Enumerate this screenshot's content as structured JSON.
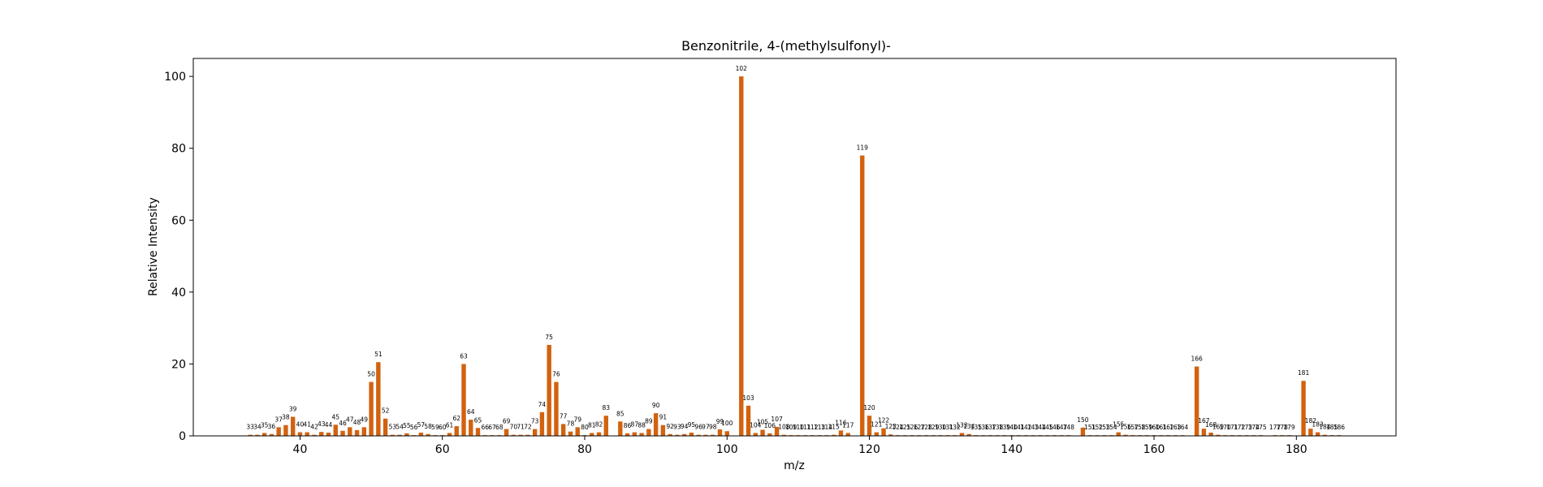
{
  "chart_data": {
    "type": "bar",
    "title": "Benzonitrile, 4-(methylsulfonyl)-",
    "xlabel": "m/z",
    "ylabel": "Relative Intensity",
    "xlim": [
      25,
      194
    ],
    "ylim": [
      0,
      105
    ],
    "xticks": [
      40,
      60,
      80,
      100,
      120,
      140,
      160,
      180
    ],
    "yticks": [
      0,
      20,
      40,
      60,
      80,
      100
    ],
    "bar_color": "#d2620f",
    "grid": false,
    "legend": "none",
    "x": [
      33,
      34,
      35,
      36,
      37,
      38,
      39,
      40,
      41,
      42,
      43,
      44,
      45,
      46,
      47,
      48,
      49,
      50,
      51,
      52,
      53,
      54,
      55,
      56,
      57,
      58,
      59,
      60,
      61,
      62,
      63,
      64,
      65,
      66,
      67,
      68,
      69,
      70,
      71,
      72,
      73,
      74,
      75,
      76,
      77,
      78,
      79,
      80,
      81,
      82,
      83,
      85,
      86,
      87,
      88,
      89,
      90,
      91,
      92,
      93,
      94,
      95,
      96,
      97,
      98,
      99,
      100,
      102,
      103,
      104,
      105,
      106,
      107,
      108,
      109,
      110,
      111,
      112,
      113,
      114,
      115,
      116,
      117,
      119,
      120,
      121,
      122,
      123,
      124,
      125,
      126,
      127,
      128,
      129,
      130,
      131,
      132,
      133,
      134,
      135,
      136,
      137,
      138,
      139,
      140,
      141,
      142,
      143,
      144,
      145,
      146,
      147,
      148,
      150,
      151,
      152,
      153,
      154,
      155,
      156,
      157,
      158,
      159,
      160,
      161,
      162,
      163,
      164,
      166,
      167,
      168,
      169,
      170,
      171,
      172,
      173,
      174,
      175,
      177,
      178,
      179,
      181,
      182,
      183,
      184,
      185,
      186
    ],
    "values": [
      0.3,
      0.3,
      0.8,
      0.5,
      2.4,
      3.0,
      5.3,
      1.0,
      1.0,
      0.3,
      1.1,
      0.9,
      3.1,
      1.4,
      2.4,
      1.6,
      2.4,
      15.0,
      20.5,
      4.8,
      0.3,
      0.3,
      0.7,
      0.2,
      0.9,
      0.5,
      0.2,
      0.2,
      0.8,
      2.7,
      20.0,
      4.5,
      2.2,
      0.2,
      0.2,
      0.2,
      1.9,
      0.3,
      0.3,
      0.3,
      1.9,
      6.6,
      25.3,
      15.0,
      3.3,
      1.2,
      2.4,
      0.2,
      0.8,
      1.0,
      5.6,
      4.0,
      0.7,
      1.0,
      0.8,
      1.9,
      6.3,
      3.0,
      0.5,
      0.3,
      0.5,
      0.9,
      0.3,
      0.3,
      0.3,
      1.8,
      1.3,
      100.0,
      8.4,
      0.8,
      1.7,
      0.7,
      2.5,
      0.3,
      0.2,
      0.2,
      0.2,
      0.2,
      0.2,
      0.2,
      0.3,
      1.5,
      0.8,
      78.0,
      5.6,
      1.0,
      2.1,
      0.4,
      0.2,
      0.2,
      0.2,
      0.2,
      0.2,
      0.2,
      0.2,
      0.2,
      0.2,
      0.8,
      0.5,
      0.2,
      0.2,
      0.2,
      0.2,
      0.2,
      0.2,
      0.2,
      0.2,
      0.2,
      0.2,
      0.2,
      0.2,
      0.2,
      0.2,
      2.3,
      0.2,
      0.2,
      0.2,
      0.2,
      1.0,
      0.3,
      0.2,
      0.2,
      0.2,
      0.2,
      0.2,
      0.2,
      0.2,
      0.2,
      19.3,
      2.0,
      0.9,
      0.3,
      0.2,
      0.2,
      0.2,
      0.2,
      0.2,
      0.2,
      0.2,
      0.2,
      0.2,
      15.3,
      2.0,
      1.0,
      0.3,
      0.2,
      0.2
    ],
    "labels": [
      "33",
      "34",
      "35",
      "36",
      "37",
      "38",
      "39",
      "40",
      "41",
      "42",
      "43",
      "44",
      "45",
      "46",
      "47",
      "48",
      "49",
      "50",
      "51",
      "52",
      "53",
      "54",
      "55",
      "56",
      "57",
      "58",
      "59",
      "60",
      "61",
      "62",
      "63",
      "64",
      "65",
      "66",
      "67",
      "68",
      "69",
      "70",
      "71",
      "72",
      "73",
      "74",
      "75",
      "76",
      "77",
      "78",
      "79",
      "80",
      "81",
      "82",
      "83",
      "85",
      "86",
      "87",
      "88",
      "89",
      "90",
      "91",
      "92",
      "93",
      "94",
      "95",
      "96",
      "97",
      "98",
      "99",
      "100",
      "102",
      "103",
      "104",
      "105",
      "106",
      "107",
      "108",
      "109",
      "110",
      "111",
      "112",
      "113",
      "114",
      "115",
      "116",
      "117",
      "119",
      "120",
      "121",
      "122",
      "123",
      "124",
      "125",
      "126",
      "127",
      "128",
      "129",
      "130",
      "131",
      "132",
      "133",
      "134",
      "135",
      "136",
      "137",
      "138",
      "139",
      "140",
      "141",
      "142",
      "143",
      "144",
      "145",
      "146",
      "147",
      "148",
      "150",
      "151",
      "152",
      "153",
      "154",
      "155",
      "156",
      "157",
      "158",
      "159",
      "160",
      "161",
      "162",
      "163",
      "164",
      "166",
      "167",
      "168",
      "169",
      "170",
      "171",
      "172",
      "173",
      "174",
      "175",
      "177",
      "178",
      "179",
      "181",
      "182",
      "183",
      "184",
      "185",
      "186"
    ]
  }
}
